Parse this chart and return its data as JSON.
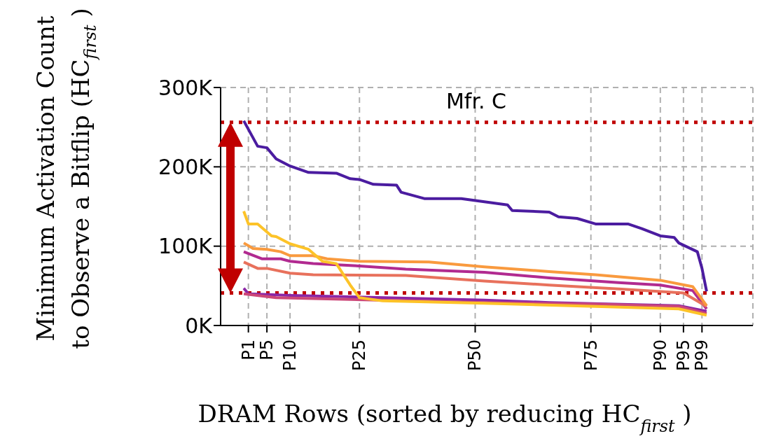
{
  "chart_data": {
    "type": "line",
    "title": "Mfr. C",
    "xlabel": "DRAM Rows (sorted by reducing HC$_{first}$)",
    "ylabel": "Minimum Activation Count\nto Observe a Bitflip (HC$_{first}$)",
    "categories": [
      null,
      "P1",
      null,
      null,
      null,
      "P5",
      null,
      null,
      null,
      null,
      "P10",
      null,
      null,
      null,
      null,
      null,
      null,
      null,
      null,
      null,
      null,
      null,
      null,
      null,
      null,
      "P25",
      null,
      null,
      null,
      null,
      null,
      null,
      null,
      null,
      null,
      null,
      null,
      null,
      null,
      null,
      null,
      null,
      null,
      null,
      null,
      null,
      null,
      null,
      null,
      null,
      "P50",
      null,
      null,
      null,
      null,
      null,
      null,
      null,
      null,
      null,
      null,
      null,
      null,
      null,
      null,
      null,
      null,
      null,
      null,
      null,
      null,
      null,
      null,
      null,
      null,
      "P75",
      null,
      null,
      null,
      null,
      null,
      null,
      null,
      null,
      null,
      null,
      null,
      null,
      null,
      null,
      "P90",
      null,
      null,
      null,
      null,
      "P95",
      null,
      null,
      null,
      "P99",
      null
    ],
    "ylim": [
      0,
      300
    ],
    "yticks": [
      {
        "value": 0,
        "label": "0K"
      },
      {
        "value": 100,
        "label": "100K"
      },
      {
        "value": 200,
        "label": "200K"
      },
      {
        "value": 300,
        "label": "300K"
      }
    ],
    "grid": true,
    "ref_lines": [
      {
        "axis": "y",
        "value": 256,
        "color": "#c00000",
        "line_style": "dotted"
      },
      {
        "axis": "y",
        "value": 41,
        "color": "#c00000",
        "line_style": "dotted"
      }
    ],
    "series": [
      {
        "color": "#4b1ca0",
        "values": [
          258,
          null,
          null,
          226,
          null,
          224,
          null,
          210,
          null,
          null,
          201,
          null,
          null,
          null,
          193,
          null,
          null,
          null,
          null,
          null,
          192,
          null,
          null,
          185,
          null,
          184,
          null,
          null,
          178,
          null,
          null,
          null,
          null,
          177,
          168,
          null,
          null,
          null,
          null,
          160,
          null,
          null,
          null,
          null,
          null,
          null,
          null,
          160,
          null,
          null,
          null,
          null,
          156,
          null,
          null,
          null,
          null,
          152,
          145,
          null,
          null,
          null,
          null,
          null,
          null,
          null,
          143,
          null,
          137,
          null,
          null,
          null,
          135,
          null,
          null,
          null,
          128,
          null,
          null,
          null,
          null,
          null,
          null,
          128,
          null,
          null,
          122,
          null,
          null,
          null,
          113,
          null,
          null,
          111,
          104,
          null,
          null,
          null,
          93,
          72,
          43
        ]
      },
      {
        "color": "#8b26a6",
        "values": [
          47,
          40,
          null,
          null,
          null,
          null,
          null,
          null,
          null,
          null,
          38,
          null,
          null,
          null,
          null,
          null,
          null,
          null,
          null,
          null,
          null,
          null,
          null,
          null,
          null,
          null,
          null,
          null,
          null,
          null,
          null,
          null,
          null,
          null,
          null,
          null,
          null,
          null,
          null,
          null,
          null,
          null,
          null,
          null,
          null,
          null,
          null,
          null,
          null,
          null,
          null,
          null,
          32,
          null,
          null,
          null,
          null,
          null,
          null,
          null,
          null,
          null,
          null,
          null,
          null,
          null,
          29,
          null,
          null,
          null,
          null,
          null,
          null,
          null,
          null,
          null,
          null,
          null,
          null,
          null,
          null,
          null,
          null,
          null,
          null,
          null,
          null,
          null,
          null,
          null,
          null,
          null,
          null,
          null,
          25,
          null,
          null,
          null,
          null,
          null,
          18
        ]
      },
      {
        "color": "#cc4778",
        "values": [
          40,
          null,
          null,
          null,
          null,
          null,
          null,
          35,
          null,
          null,
          null,
          null,
          null,
          null,
          null,
          null,
          null,
          null,
          null,
          null,
          null,
          null,
          null,
          null,
          null,
          null,
          null,
          null,
          null,
          null,
          null,
          null,
          null,
          null,
          null,
          null,
          null,
          null,
          null,
          null,
          null,
          null,
          null,
          null,
          null,
          null,
          null,
          null,
          null,
          null,
          null,
          null,
          29,
          null,
          null,
          null,
          null,
          null,
          null,
          null,
          null,
          null,
          null,
          null,
          null,
          null,
          null,
          null,
          null,
          null,
          null,
          null,
          null,
          null,
          null,
          null,
          27,
          null,
          null,
          null,
          null,
          null,
          null,
          null,
          null,
          null,
          null,
          null,
          null,
          null,
          null,
          null,
          null,
          null,
          24,
          null,
          null,
          null,
          null,
          null,
          15
        ]
      },
      {
        "color": "#b12a90",
        "values": [
          93,
          null,
          null,
          null,
          84,
          null,
          null,
          null,
          84,
          null,
          81,
          null,
          null,
          null,
          null,
          78,
          null,
          null,
          null,
          null,
          null,
          null,
          null,
          null,
          null,
          75,
          null,
          null,
          null,
          null,
          null,
          null,
          null,
          null,
          null,
          71,
          null,
          null,
          null,
          null,
          null,
          null,
          null,
          null,
          null,
          null,
          null,
          null,
          null,
          null,
          null,
          null,
          67,
          null,
          null,
          null,
          null,
          null,
          null,
          null,
          null,
          null,
          null,
          null,
          null,
          null,
          60,
          null,
          null,
          null,
          null,
          null,
          null,
          null,
          null,
          null,
          null,
          null,
          null,
          null,
          null,
          54,
          null,
          null,
          null,
          null,
          null,
          null,
          null,
          null,
          51,
          null,
          null,
          null,
          null,
          null,
          null,
          44,
          null,
          null,
          21
        ]
      },
      {
        "color": "#e8715c",
        "values": [
          80,
          null,
          null,
          72,
          null,
          72,
          null,
          null,
          null,
          null,
          66,
          null,
          null,
          null,
          null,
          64,
          null,
          null,
          null,
          null,
          null,
          null,
          null,
          null,
          null,
          null,
          null,
          null,
          null,
          null,
          null,
          null,
          null,
          null,
          null,
          63,
          null,
          null,
          null,
          null,
          null,
          null,
          null,
          null,
          null,
          null,
          null,
          null,
          null,
          null,
          null,
          null,
          56,
          null,
          null,
          null,
          null,
          null,
          null,
          null,
          null,
          null,
          null,
          null,
          null,
          null,
          51,
          null,
          null,
          null,
          null,
          null,
          null,
          null,
          null,
          null,
          null,
          null,
          null,
          null,
          null,
          46,
          null,
          null,
          null,
          null,
          null,
          null,
          null,
          null,
          null,
          null,
          null,
          null,
          null,
          41,
          null,
          null,
          null,
          null,
          24
        ]
      },
      {
        "color": "#f99a3e",
        "values": [
          104,
          null,
          97,
          null,
          null,
          96,
          null,
          null,
          93,
          null,
          88,
          null,
          null,
          null,
          null,
          88,
          null,
          null,
          84,
          null,
          null,
          null,
          null,
          null,
          null,
          81,
          null,
          null,
          null,
          null,
          null,
          null,
          null,
          null,
          null,
          null,
          null,
          null,
          null,
          null,
          80,
          null,
          null,
          null,
          null,
          null,
          null,
          null,
          null,
          null,
          null,
          null,
          74,
          null,
          null,
          null,
          null,
          null,
          null,
          null,
          null,
          null,
          null,
          null,
          null,
          null,
          68,
          null,
          null,
          null,
          null,
          null,
          null,
          null,
          null,
          null,
          64,
          null,
          null,
          null,
          null,
          null,
          null,
          null,
          null,
          null,
          null,
          null,
          null,
          null,
          57,
          null,
          null,
          null,
          null,
          null,
          null,
          49,
          null,
          null,
          25
        ]
      },
      {
        "color": "#fdc328",
        "values": [
          144,
          128,
          null,
          128,
          null,
          null,
          113,
          112,
          null,
          null,
          103,
          null,
          null,
          null,
          96,
          null,
          null,
          81,
          null,
          null,
          78,
          69,
          null,
          51,
          null,
          35,
          null,
          null,
          null,
          null,
          31,
          null,
          null,
          null,
          null,
          null,
          null,
          null,
          null,
          null,
          null,
          null,
          null,
          null,
          null,
          null,
          null,
          null,
          null,
          null,
          null,
          null,
          28,
          null,
          null,
          null,
          null,
          null,
          null,
          null,
          null,
          null,
          null,
          null,
          null,
          null,
          null,
          null,
          null,
          null,
          null,
          null,
          null,
          null,
          null,
          null,
          24,
          null,
          null,
          null,
          null,
          null,
          null,
          null,
          null,
          null,
          null,
          null,
          null,
          null,
          null,
          null,
          null,
          null,
          21,
          null,
          null,
          null,
          null,
          null,
          13
        ]
      }
    ]
  }
}
